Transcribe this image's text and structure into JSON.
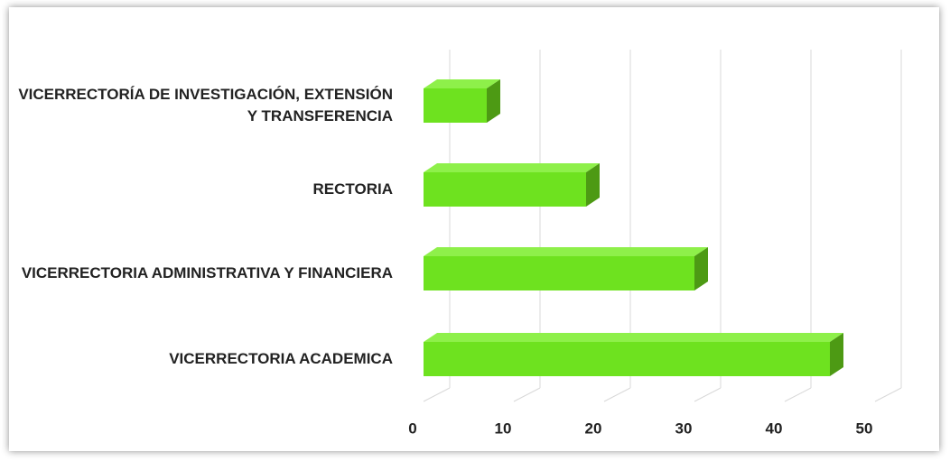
{
  "chart_data": {
    "type": "bar",
    "orientation": "horizontal",
    "categories": [
      "VICERRECTORÍA DE INVESTIGACIÓN, EXTENSIÓN Y TRANSFERENCIA",
      "RECTORIA",
      "VICERRECTORIA ADMINISTRATIVA Y FINANCIERA",
      "VICERRECTORIA ACADEMICA"
    ],
    "values": [
      7,
      18,
      30,
      45
    ],
    "color": "#6ee21f",
    "xlim": [
      0,
      50
    ],
    "xticks": [
      0,
      10,
      20,
      30,
      40,
      50
    ],
    "grid": true
  }
}
